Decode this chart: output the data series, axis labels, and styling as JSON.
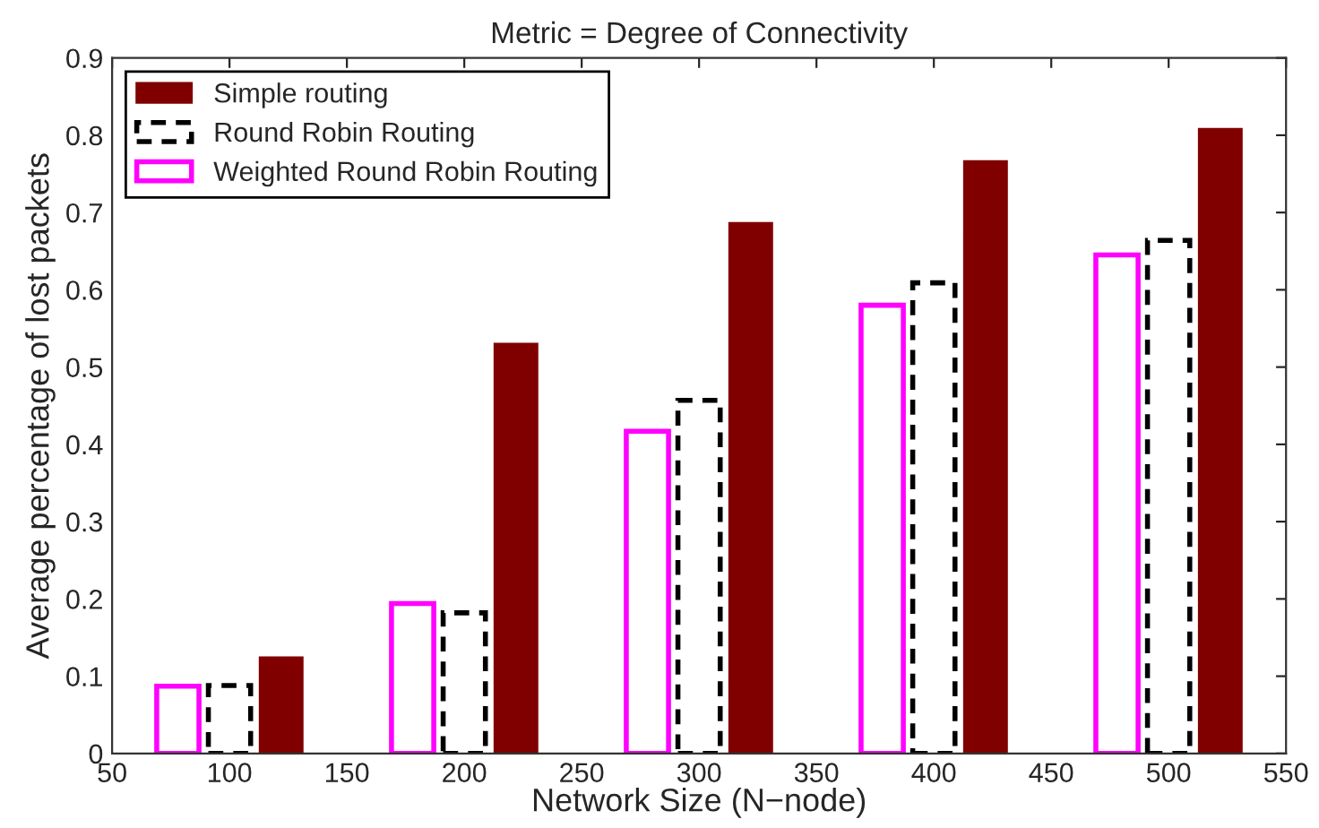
{
  "chart_data": {
    "type": "bar",
    "title": "Metric = Degree of Connectivity",
    "xlabel": "Network Size (N−node)",
    "ylabel": "Average percentage of lost packets",
    "series": [
      {
        "name": "Simple routing",
        "color": "#800000",
        "x": [
          122,
          222,
          322,
          422,
          522
        ],
        "values": [
          0.124,
          0.53,
          0.686,
          0.766,
          0.808
        ]
      },
      {
        "name": "Round Robin Routing",
        "color": "#000000",
        "line_style": "dashed",
        "x": [
          100,
          200,
          300,
          400,
          500
        ],
        "values": [
          0.088,
          0.182,
          0.457,
          0.609,
          0.664
        ]
      },
      {
        "name": "Weighted Round Robin Routing",
        "color": "#ff00ff",
        "line_style": "solid",
        "x": [
          78,
          178,
          278,
          378,
          478
        ],
        "values": [
          0.087,
          0.194,
          0.417,
          0.58,
          0.645
        ]
      }
    ],
    "xlim": [
      50,
      550
    ],
    "xticks": [
      50,
      100,
      150,
      200,
      250,
      300,
      350,
      400,
      450,
      500,
      550
    ],
    "ylim": [
      0,
      0.9
    ],
    "yticks": [
      0,
      0.1,
      0.2,
      0.3,
      0.4,
      0.5,
      0.6,
      0.7,
      0.8,
      0.9
    ],
    "grid": false,
    "legend": "top left"
  }
}
